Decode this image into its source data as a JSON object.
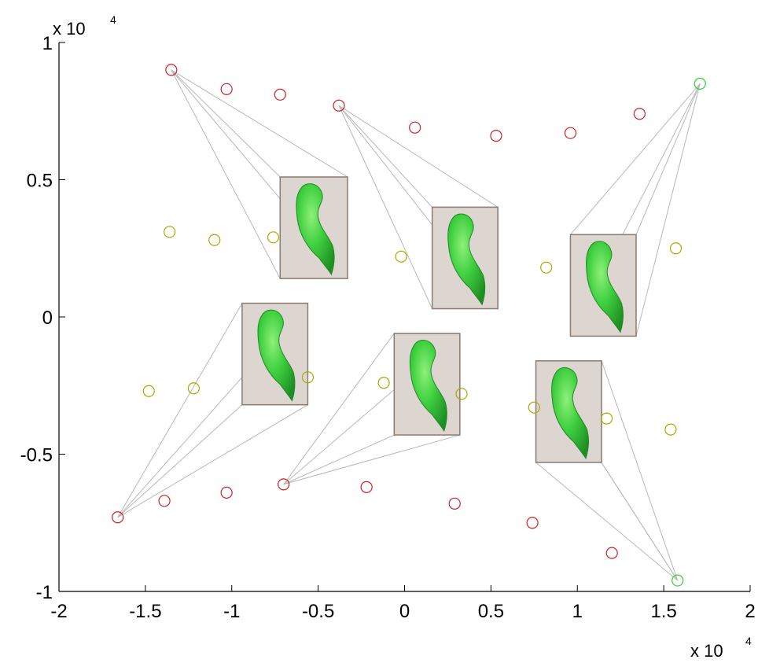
{
  "chart_data": {
    "type": "scatter",
    "title": "",
    "xlabel": "",
    "ylabel": "",
    "xlim": [
      -2,
      2
    ],
    "ylim": [
      -1,
      1
    ],
    "x_ticks": [
      -2,
      -1.5,
      -1,
      -0.5,
      0,
      0.5,
      1,
      1.5,
      2
    ],
    "x_tick_labels": [
      "-2",
      "-1.5",
      "-1",
      "-0.5",
      "0",
      "0.5",
      "1",
      "1.5",
      "2"
    ],
    "y_ticks": [
      -1,
      -0.5,
      0,
      0.5,
      1
    ],
    "y_tick_labels": [
      "-1",
      "-0.5",
      "0",
      "0.5",
      "1"
    ],
    "x_multiplier": {
      "base": "x 10",
      "exp": "4"
    },
    "y_multiplier": {
      "base": "x 10",
      "exp": "4"
    },
    "grid": false,
    "series": [
      {
        "color": "#cc2222",
        "marker": "open-circle",
        "points": [
          [
            -1.35,
            0.9
          ],
          [
            -1.03,
            0.83
          ],
          [
            -0.72,
            0.81
          ],
          [
            -0.38,
            0.77
          ],
          [
            0.06,
            0.69
          ],
          [
            0.53,
            0.66
          ],
          [
            0.96,
            0.67
          ],
          [
            1.36,
            0.74
          ],
          [
            -1.66,
            -0.73
          ],
          [
            -1.39,
            -0.67
          ],
          [
            -1.03,
            -0.64
          ],
          [
            -0.7,
            -0.61
          ],
          [
            -0.22,
            -0.62
          ],
          [
            0.29,
            -0.68
          ],
          [
            0.74,
            -0.75
          ],
          [
            1.2,
            -0.86
          ]
        ]
      },
      {
        "color": "#aaaa00",
        "marker": "open-circle",
        "points": [
          [
            -1.36,
            0.31
          ],
          [
            -1.1,
            0.28
          ],
          [
            -0.76,
            0.29
          ],
          [
            -0.02,
            0.22
          ],
          [
            0.82,
            0.18
          ],
          [
            1.57,
            0.25
          ],
          [
            -1.48,
            -0.27
          ],
          [
            -1.22,
            -0.26
          ],
          [
            -0.56,
            -0.22
          ],
          [
            -0.12,
            -0.24
          ],
          [
            0.33,
            -0.28
          ],
          [
            0.75,
            -0.33
          ],
          [
            1.17,
            -0.37
          ],
          [
            1.54,
            -0.41
          ]
        ]
      },
      {
        "color": "#33cc33",
        "marker": "open-circle",
        "points": [
          [
            1.71,
            0.85
          ],
          [
            1.58,
            -0.96
          ]
        ]
      }
    ],
    "insets": [
      {
        "anchor": [
          -1.35,
          0.9
        ],
        "x_range": [
          -0.72,
          -0.33
        ],
        "y_range": [
          0.14,
          0.51
        ]
      },
      {
        "anchor": [
          -0.38,
          0.77
        ],
        "x_range": [
          0.16,
          0.54
        ],
        "y_range": [
          0.03,
          0.4
        ]
      },
      {
        "anchor": [
          1.71,
          0.85
        ],
        "x_range": [
          0.96,
          1.34
        ],
        "y_range": [
          -0.07,
          0.3
        ]
      },
      {
        "anchor": [
          -1.66,
          -0.73
        ],
        "x_range": [
          -0.94,
          -0.56
        ],
        "y_range": [
          -0.32,
          0.05
        ]
      },
      {
        "anchor": [
          -0.7,
          -0.61
        ],
        "x_range": [
          -0.06,
          0.32
        ],
        "y_range": [
          -0.43,
          -0.06
        ]
      },
      {
        "anchor": [
          1.58,
          -0.96
        ],
        "x_range": [
          0.76,
          1.14
        ],
        "y_range": [
          -0.53,
          -0.16
        ]
      }
    ]
  }
}
